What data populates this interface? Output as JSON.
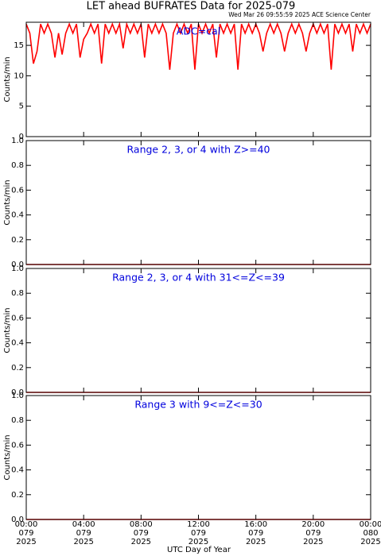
{
  "title": "LET ahead BUFRATES Data for 2025-079",
  "subtitle": "Wed Mar 26 09:55:59 2025 ACE Science Center",
  "x_axis": {
    "label": "UTC Day of Year",
    "xlim": [
      0,
      24
    ],
    "xticks": [
      {
        "value": 0,
        "label": "00:00",
        "day": "079",
        "year": "2025"
      },
      {
        "value": 4,
        "label": "04:00",
        "day": "079",
        "year": "2025"
      },
      {
        "value": 8,
        "label": "08:00",
        "day": "079",
        "year": "2025"
      },
      {
        "value": 12,
        "label": "12:00",
        "day": "079",
        "year": "2025"
      },
      {
        "value": 16,
        "label": "16:00",
        "day": "079",
        "year": "2025"
      },
      {
        "value": 20,
        "label": "20:00",
        "day": "079",
        "year": "2025"
      },
      {
        "value": 24,
        "label": "00:00",
        "day": "080",
        "year": "2025"
      }
    ]
  },
  "chart_data": [
    {
      "type": "line",
      "annotation": "ADC=cal",
      "ylabel": "Counts/min",
      "ylim": [
        0,
        18.8
      ],
      "yticks": [
        0,
        5,
        10,
        15
      ],
      "series": [
        {
          "color": "#ff0000",
          "x": [
            0,
            0.25,
            0.5,
            0.75,
            1,
            1.25,
            1.5,
            1.75,
            2,
            2.25,
            2.5,
            2.75,
            3,
            3.25,
            3.5,
            3.75,
            4,
            4.25,
            4.5,
            4.75,
            5,
            5.25,
            5.5,
            5.75,
            6,
            6.25,
            6.5,
            6.75,
            7,
            7.25,
            7.5,
            7.75,
            8,
            8.25,
            8.5,
            8.75,
            9,
            9.25,
            9.5,
            9.75,
            10,
            10.25,
            10.5,
            10.75,
            11,
            11.25,
            11.5,
            11.75,
            12,
            12.25,
            12.5,
            12.75,
            13,
            13.25,
            13.5,
            13.75,
            14,
            14.25,
            14.5,
            14.75,
            15,
            15.25,
            15.5,
            15.75,
            16,
            16.25,
            16.5,
            16.75,
            17,
            17.25,
            17.5,
            17.75,
            18,
            18.25,
            18.5,
            18.75,
            19,
            19.25,
            19.5,
            19.75,
            20,
            20.25,
            20.5,
            20.75,
            21,
            21.25,
            21.5,
            21.75,
            22,
            22.25,
            22.5,
            22.75,
            23,
            23.25,
            23.5,
            23.75,
            24
          ],
          "values": [
            18.5,
            17,
            12,
            14,
            18.5,
            17,
            18.5,
            17,
            13,
            17,
            13.5,
            17,
            18.5,
            17,
            18.5,
            13,
            16,
            17,
            18.5,
            17,
            18.5,
            12,
            18.5,
            17,
            18.5,
            17,
            18.5,
            14.5,
            18.5,
            17,
            18.5,
            17,
            18.5,
            13,
            18.5,
            17,
            18.5,
            17,
            18.5,
            17,
            11,
            17,
            18.5,
            17,
            18.5,
            17,
            18.5,
            11,
            18.5,
            17,
            18.5,
            17,
            18.5,
            13,
            18.5,
            17,
            18.5,
            17,
            18.5,
            11,
            18.5,
            17,
            18.5,
            17,
            18.5,
            17,
            14,
            17,
            18.5,
            17,
            18.5,
            17,
            14,
            17,
            18.5,
            17,
            18.5,
            17,
            14,
            17,
            18.5,
            17,
            18.5,
            17,
            18.5,
            11,
            18.5,
            17,
            18.5,
            17,
            18.5,
            14,
            18.5,
            17,
            18.5,
            17,
            18.5
          ]
        }
      ]
    },
    {
      "type": "line",
      "annotation": "Range 2, 3, or 4 with Z>=40",
      "ylabel": "Counts/min",
      "ylim": [
        0,
        1
      ],
      "yticks": [
        {
          "value": 0,
          "label": "0.0"
        },
        {
          "value": 0.2,
          "label": "0.2"
        },
        {
          "value": 0.4,
          "label": "0.4"
        },
        {
          "value": 0.6,
          "label": "0.6"
        },
        {
          "value": 0.8,
          "label": "0.8"
        },
        {
          "value": 1,
          "label": "1.0"
        }
      ],
      "series": [
        {
          "color": "#ff0000",
          "x": [
            0,
            24
          ],
          "values": [
            0,
            0
          ]
        }
      ]
    },
    {
      "type": "line",
      "annotation": "Range 2, 3, or 4 with 31<=Z<=39",
      "ylabel": "Counts/min",
      "ylim": [
        0,
        1
      ],
      "yticks": [
        {
          "value": 0,
          "label": "0.0"
        },
        {
          "value": 0.2,
          "label": "0.2"
        },
        {
          "value": 0.4,
          "label": "0.4"
        },
        {
          "value": 0.6,
          "label": "0.6"
        },
        {
          "value": 0.8,
          "label": "0.8"
        },
        {
          "value": 1,
          "label": "1.0"
        }
      ],
      "series": [
        {
          "color": "#ff0000",
          "x": [
            0,
            24
          ],
          "values": [
            0,
            0
          ]
        }
      ]
    },
    {
      "type": "line",
      "annotation": "Range 3 with 9<=Z<=30",
      "ylabel": "Counts/min",
      "ylim": [
        0,
        1
      ],
      "yticks": [
        {
          "value": 0,
          "label": "0.0"
        },
        {
          "value": 0.2,
          "label": "0.2"
        },
        {
          "value": 0.4,
          "label": "0.4"
        },
        {
          "value": 0.6,
          "label": "0.6"
        },
        {
          "value": 0.8,
          "label": "0.8"
        },
        {
          "value": 1,
          "label": "1.0"
        }
      ],
      "series": [
        {
          "color": "#ff0000",
          "x": [
            0,
            24
          ],
          "values": [
            0,
            0
          ]
        }
      ]
    }
  ]
}
